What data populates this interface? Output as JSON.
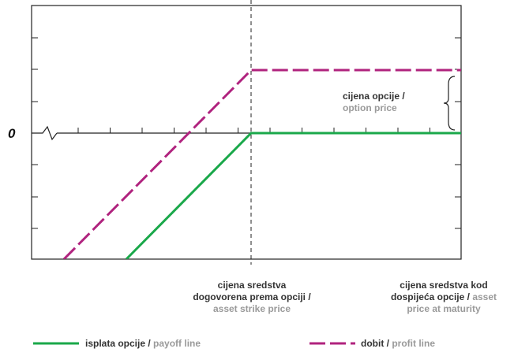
{
  "chart_data": {
    "type": "line",
    "title": "",
    "zero_label": "0",
    "annotation": {
      "black": "cijena opcije /",
      "grey": "option price"
    },
    "strike_label": {
      "line1": "cijena sredstva",
      "line2": "dogovorena prema opciji /",
      "grey": "asset strike price"
    },
    "maturity_label": {
      "line1": "cijena sredstva kod",
      "line2_black": "dospijeća opcije /",
      "line2_grey": "asset",
      "line3_grey": "price at maturity"
    },
    "strike_x": 0,
    "xlim": [
      -7,
      7
    ],
    "ylim": [
      -4,
      4
    ],
    "series": [
      {
        "name_black": "isplata opcije /",
        "name_grey": "payoff line",
        "color": "#1aa84a",
        "dash": "solid",
        "x": [
          -4,
          0,
          7
        ],
        "y": [
          -4,
          0,
          0
        ]
      },
      {
        "name_black": "dobit /",
        "name_grey": "profit line",
        "color": "#b0237e",
        "dash": "dashed",
        "x": [
          -6,
          0,
          7
        ],
        "y": [
          -4,
          2,
          2
        ]
      }
    ]
  }
}
